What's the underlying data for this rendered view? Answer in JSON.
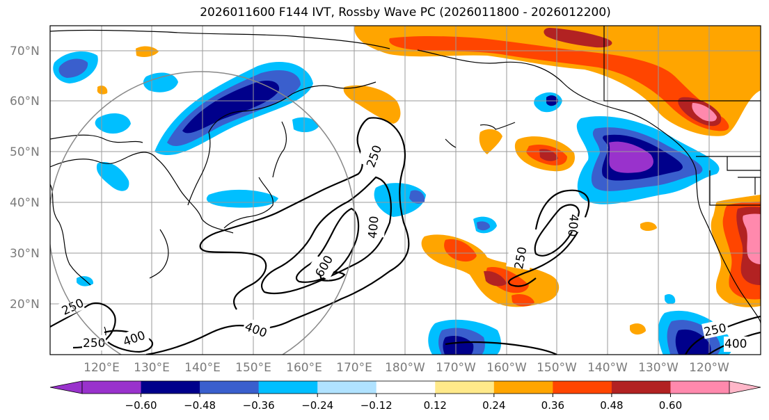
{
  "title": "2026011600 F144 IVT, Rossby Wave PC (2026011800 - 2026012200)",
  "map": {
    "lat_labels": [
      "70°N",
      "60°N",
      "50°N",
      "40°N",
      "30°N",
      "20°N"
    ],
    "lon_labels": [
      "120°E",
      "130°E",
      "140°E",
      "150°E",
      "160°E",
      "170°E",
      "180°W",
      "170°W",
      "160°W",
      "150°W",
      "140°W",
      "130°W",
      "120°W"
    ],
    "contour_labels": [
      "250",
      "400",
      "600",
      "250",
      "400",
      "250",
      "250",
      "400",
      "250",
      "400"
    ]
  },
  "colorbar": {
    "levels": [
      -0.6,
      -0.48,
      -0.36,
      -0.24,
      -0.12,
      0.12,
      0.24,
      0.36,
      0.48,
      0.6
    ],
    "tick_labels": [
      "−0.60",
      "−0.48",
      "−0.36",
      "−0.24",
      "−0.12",
      "0.12",
      "0.24",
      "0.36",
      "0.48",
      "0.60"
    ],
    "colors": [
      "#9932cc",
      "#00008b",
      "#3a5fcd",
      "#00bfff",
      "#b0e2ff",
      "#ffffff",
      "#ffe98a",
      "#ffa500",
      "#ff4500",
      "#b22222",
      "#ff89ad",
      "#ffb6c8"
    ]
  }
}
